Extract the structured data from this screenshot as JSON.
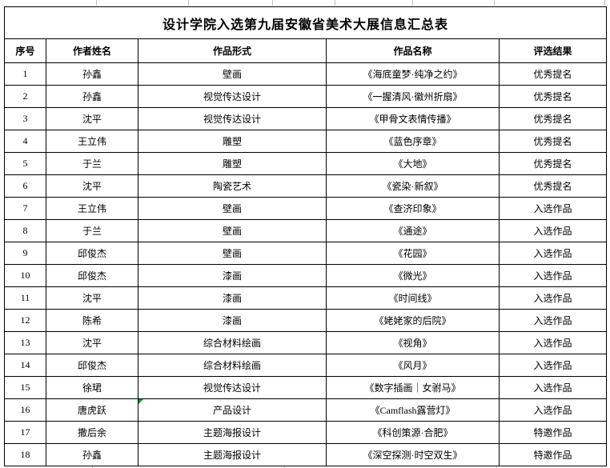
{
  "title": "设计学院入选第九届安徽省美术大展信息汇总表",
  "table": {
    "headers": [
      "序号",
      "作者姓名",
      "作品形式",
      "作品名称",
      "评选结果"
    ],
    "rows": [
      [
        "1",
        "孙鑫",
        "壁画",
        "《海底童梦·纯净之约》",
        "优秀提名"
      ],
      [
        "2",
        "孙鑫",
        "视觉传达设计",
        "《一握清风·徽州折扇》",
        "优秀提名"
      ],
      [
        "3",
        "沈平",
        "视觉传达设计",
        "《甲骨文表情传播》",
        "优秀提名"
      ],
      [
        "4",
        "王立伟",
        "雕塑",
        "《蓝色序章》",
        "优秀提名"
      ],
      [
        "5",
        "于兰",
        "雕塑",
        "《大地》",
        "优秀提名"
      ],
      [
        "6",
        "沈平",
        "陶瓷艺术",
        "《瓷染·新叙》",
        "优秀提名"
      ],
      [
        "7",
        "王立伟",
        "壁画",
        "《查济印象》",
        "入选作品"
      ],
      [
        "8",
        "于兰",
        "壁画",
        "《通途》",
        "入选作品"
      ],
      [
        "9",
        "邱俊杰",
        "壁画",
        "《花园》",
        "入选作品"
      ],
      [
        "10",
        "邱俊杰",
        "漆画",
        "《微光》",
        "入选作品"
      ],
      [
        "11",
        "沈平",
        "漆画",
        "《时间线》",
        "入选作品"
      ],
      [
        "12",
        "陈希",
        "漆画",
        "《姥姥家的后院》",
        "入选作品"
      ],
      [
        "13",
        "沈平",
        "综合材料绘画",
        "《视角》",
        "入选作品"
      ],
      [
        "14",
        "邱俊杰",
        "综合材料绘画",
        "《风月》",
        "入选作品"
      ],
      [
        "15",
        "徐珺",
        "视觉传达设计",
        "《数字插画｜女驸马》",
        "入选作品"
      ],
      [
        "16",
        "唐虎跃",
        "产品设计",
        "《Camflash露营灯》",
        "入选作品"
      ],
      [
        "17",
        "撒后余",
        "主题海报设计",
        "《科创策源·合肥》",
        "特邀作品"
      ],
      [
        "18",
        "孙鑫",
        "主题海报设计",
        "《深空探测·时空双生》",
        "特邀作品"
      ]
    ],
    "error_marker": {
      "row_index": 15,
      "col_index": 2
    }
  },
  "colors": {
    "border": "#000000",
    "text": "#000000",
    "background": "#ffffff",
    "error_indicator": "#009933"
  }
}
